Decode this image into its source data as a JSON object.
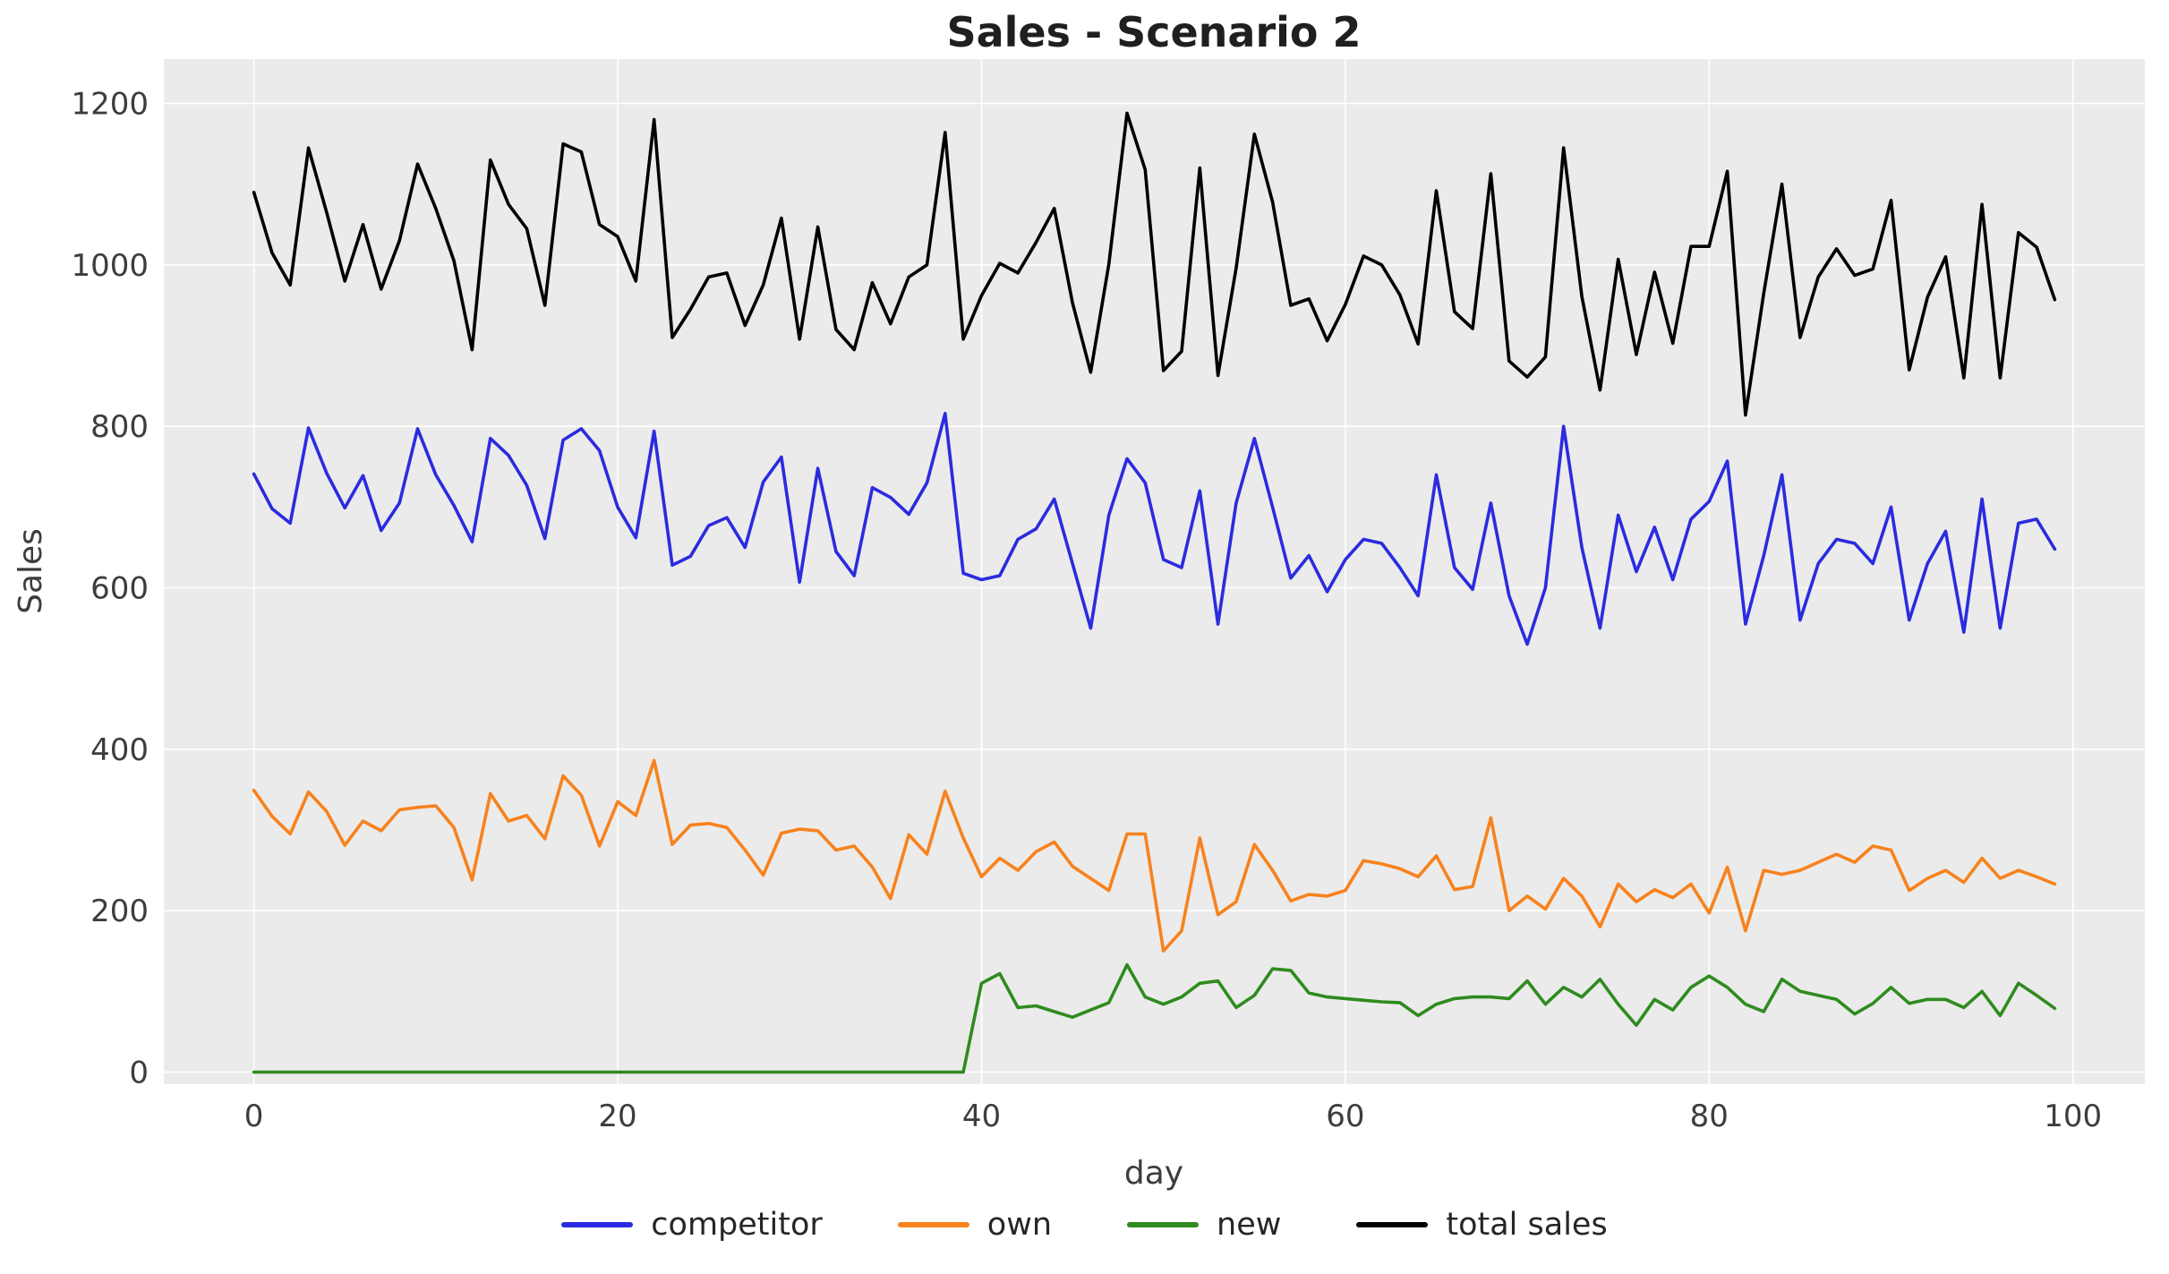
{
  "title": "Sales - Scenario 2",
  "axes": {
    "xlabel": "day",
    "ylabel": "Sales",
    "x_ticks": [
      0,
      20,
      40,
      60,
      80,
      100
    ],
    "y_ticks": [
      0,
      200,
      400,
      600,
      800,
      1000,
      1200
    ]
  },
  "colors": {
    "competitor": "#2b2be0",
    "own": "#f8821d",
    "new": "#2f8b1f",
    "total_sales": "#000000",
    "plot_background": "#ebebeb",
    "grid": "#ffffff"
  },
  "legend": [
    {
      "label": "competitor",
      "color": "#2b2be0"
    },
    {
      "label": "own",
      "color": "#f8821d"
    },
    {
      "label": "new",
      "color": "#2f8b1f"
    },
    {
      "label": "total sales",
      "color": "#000000"
    }
  ],
  "chart_data": {
    "type": "line",
    "title": "Sales - Scenario 2",
    "xlabel": "day",
    "ylabel": "Sales",
    "x_note": "x values are day index 0..99",
    "x_ticks": [
      0,
      20,
      40,
      60,
      80,
      100
    ],
    "y_ticks": [
      0,
      200,
      400,
      600,
      800,
      1000,
      1200
    ],
    "xlim": [
      -4.95,
      103.95
    ],
    "ylim": [
      -15,
      1255
    ],
    "grid": true,
    "legend_position": "bottom-center",
    "series": [
      {
        "name": "competitor",
        "color": "#2b2be0",
        "values": [
          741,
          698,
          680,
          798,
          742,
          699,
          739,
          671,
          705,
          797,
          740,
          702,
          657,
          785,
          764,
          727,
          661,
          783,
          797,
          770,
          700,
          662,
          794,
          628,
          639,
          677,
          687,
          650,
          731,
          762,
          607,
          748,
          645,
          615,
          724,
          712,
          691,
          730,
          816,
          618,
          610,
          615,
          660,
          673,
          710,
          630,
          550,
          690,
          760,
          730,
          635,
          625,
          720,
          555,
          705,
          785,
          700,
          612,
          640,
          595,
          635,
          660,
          655,
          625,
          590,
          740,
          625,
          598,
          705,
          590,
          530,
          600,
          800,
          650,
          550,
          690,
          620,
          675,
          610,
          685,
          707,
          757,
          555,
          640,
          740,
          560,
          630,
          660,
          655,
          630,
          700,
          560,
          630,
          670,
          545,
          710,
          550,
          680,
          685,
          648
        ]
      },
      {
        "name": "own",
        "color": "#f8821d",
        "values": [
          349,
          317,
          295,
          347,
          323,
          281,
          311,
          299,
          325,
          328,
          330,
          303,
          238,
          345,
          311,
          318,
          289,
          367,
          343,
          280,
          335,
          318,
          386,
          282,
          306,
          308,
          303,
          275,
          244,
          296,
          301,
          299,
          275,
          280,
          254,
          215,
          294,
          270,
          348,
          290,
          242,
          265,
          250,
          273,
          285,
          255,
          240,
          225,
          295,
          295,
          150,
          175,
          290,
          195,
          211,
          282,
          250,
          212,
          220,
          218,
          225,
          262,
          258,
          252,
          242,
          268,
          226,
          230,
          315,
          200,
          218,
          202,
          240,
          218,
          180,
          233,
          211,
          226,
          216,
          233,
          197,
          254,
          175,
          250,
          245,
          250,
          260,
          270,
          260,
          280,
          275,
          225,
          240,
          250,
          235,
          265,
          240,
          250,
          242,
          233
        ]
      },
      {
        "name": "new",
        "color": "#2f8b1f",
        "values": [
          0,
          0,
          0,
          0,
          0,
          0,
          0,
          0,
          0,
          0,
          0,
          0,
          0,
          0,
          0,
          0,
          0,
          0,
          0,
          0,
          0,
          0,
          0,
          0,
          0,
          0,
          0,
          0,
          0,
          0,
          0,
          0,
          0,
          0,
          0,
          0,
          0,
          0,
          0,
          0,
          110,
          122,
          80,
          82,
          75,
          68,
          77,
          86,
          133,
          93,
          84,
          93,
          110,
          113,
          80,
          95,
          128,
          126,
          98,
          93,
          91,
          89,
          87,
          86,
          70,
          84,
          91,
          93,
          93,
          91,
          113,
          84,
          105,
          93,
          115,
          84,
          58,
          90,
          77,
          105,
          119,
          105,
          84,
          75,
          115,
          100,
          95,
          90,
          72,
          85,
          105,
          85,
          90,
          90,
          80,
          100,
          70,
          110,
          95,
          79
        ]
      },
      {
        "name": "total sales",
        "color": "#000000",
        "values": [
          1090,
          1015,
          975,
          1145,
          1065,
          980,
          1050,
          970,
          1030,
          1125,
          1070,
          1005,
          895,
          1130,
          1075,
          1045,
          950,
          1150,
          1140,
          1050,
          1035,
          980,
          1180,
          910,
          945,
          985,
          990,
          925,
          975,
          1058,
          908,
          1047,
          920,
          895,
          978,
          927,
          985,
          1000,
          1164,
          908,
          962,
          1002,
          990,
          1028,
          1070,
          953,
          867,
          1001,
          1188,
          1118,
          869,
          893,
          1120,
          863,
          996,
          1162,
          1078,
          950,
          958,
          906,
          951,
          1011,
          1000,
          963,
          902,
          1092,
          942,
          921,
          1113,
          881,
          861,
          886,
          1145,
          961,
          845,
          1007,
          889,
          991,
          903,
          1023,
          1023,
          1116,
          814,
          965,
          1100,
          910,
          985,
          1020,
          987,
          995,
          1080,
          870,
          960,
          1010,
          860,
          1075,
          860,
          1040,
          1022,
          957
        ]
      }
    ]
  }
}
